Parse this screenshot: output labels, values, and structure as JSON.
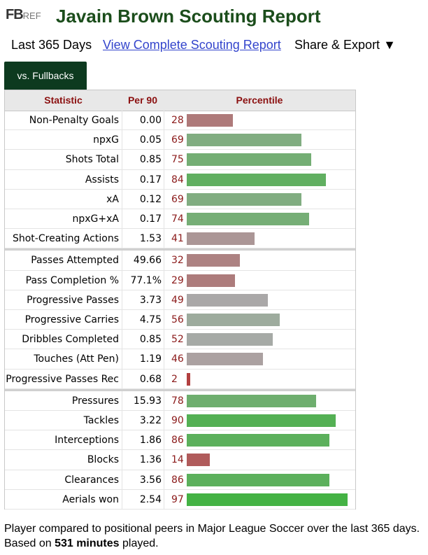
{
  "header": {
    "logo_bold": "FB",
    "logo_light": "REF",
    "title": "Javain Brown Scouting Report"
  },
  "nav": {
    "period": "Last 365 Days",
    "link": "View Complete Scouting Report",
    "share": "Share & Export ▼"
  },
  "tab": "vs. Fullbacks",
  "table": {
    "columns": [
      "Statistic",
      "Per 90",
      "Percentile"
    ],
    "groups": [
      {
        "rows": [
          {
            "statistic": "Non-Penalty Goals",
            "per90": "0.00",
            "percentile": 28
          },
          {
            "statistic": "npxG",
            "per90": "0.05",
            "percentile": 69
          },
          {
            "statistic": "Shots Total",
            "per90": "0.85",
            "percentile": 75
          },
          {
            "statistic": "Assists",
            "per90": "0.17",
            "percentile": 84
          },
          {
            "statistic": "xA",
            "per90": "0.12",
            "percentile": 69
          },
          {
            "statistic": "npxG+xA",
            "per90": "0.17",
            "percentile": 74
          },
          {
            "statistic": "Shot-Creating Actions",
            "per90": "1.53",
            "percentile": 41
          }
        ]
      },
      {
        "rows": [
          {
            "statistic": "Passes Attempted",
            "per90": "49.66",
            "percentile": 32
          },
          {
            "statistic": "Pass Completion %",
            "per90": "77.1%",
            "percentile": 29
          },
          {
            "statistic": "Progressive Passes",
            "per90": "3.73",
            "percentile": 49
          },
          {
            "statistic": "Progressive Carries",
            "per90": "4.75",
            "percentile": 56
          },
          {
            "statistic": "Dribbles Completed",
            "per90": "0.85",
            "percentile": 52
          },
          {
            "statistic": "Touches (Att Pen)",
            "per90": "1.19",
            "percentile": 46
          },
          {
            "statistic": "Progressive Passes Rec",
            "per90": "0.68",
            "percentile": 2
          }
        ]
      },
      {
        "rows": [
          {
            "statistic": "Pressures",
            "per90": "15.93",
            "percentile": 78
          },
          {
            "statistic": "Tackles",
            "per90": "3.22",
            "percentile": 90
          },
          {
            "statistic": "Interceptions",
            "per90": "1.86",
            "percentile": 86
          },
          {
            "statistic": "Blocks",
            "per90": "1.36",
            "percentile": 14
          },
          {
            "statistic": "Clearances",
            "per90": "3.56",
            "percentile": 86
          },
          {
            "statistic": "Aerials won",
            "per90": "2.54",
            "percentile": 97
          }
        ]
      }
    ]
  },
  "footer": {
    "text_before": "Player compared to positional peers in Major League Soccer over the last 365 days. Based on ",
    "minutes": "531 minutes",
    "text_after": " played."
  }
}
